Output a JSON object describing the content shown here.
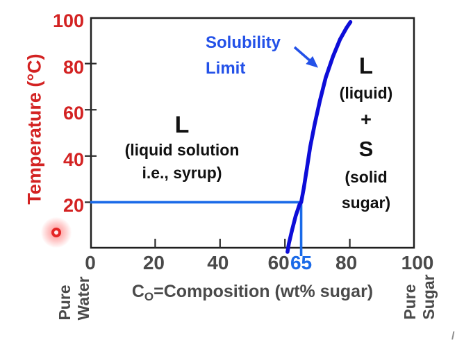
{
  "colors": {
    "curve": "#0d0dd8",
    "guide": "#1a6ae8",
    "callout": "#2351e8",
    "axis_red": "#d32222",
    "label_gray": "#4a4a4a",
    "border": "#1f1f1f"
  },
  "chart_data": {
    "type": "line",
    "title": "",
    "ylabel": "Temperature (°C)",
    "xlabel": {
      "symbol": "C",
      "subscript": "O",
      "rest": "=Composition (wt% sugar)"
    },
    "xlim": [
      0,
      100
    ],
    "ylim": [
      0,
      100
    ],
    "grid": false,
    "x_ticks": [
      {
        "value": 0,
        "label": "0",
        "color": "gray"
      },
      {
        "value": 20,
        "label": "20",
        "color": "gray",
        "dx": -2
      },
      {
        "value": 40,
        "label": "40",
        "color": "gray",
        "dx": -3
      },
      {
        "value": 60,
        "label": "60",
        "color": "gray",
        "dx": -9
      },
      {
        "value": 65,
        "label": "65",
        "color": "blue"
      },
      {
        "value": 80,
        "label": "80",
        "color": "gray",
        "dx": -5
      },
      {
        "value": 100,
        "label": "100",
        "color": "gray",
        "dx": 4
      }
    ],
    "x_tick_marks": [
      20,
      40,
      60,
      80
    ],
    "y_ticks": [
      {
        "value": 100,
        "label": "100"
      },
      {
        "value": 80,
        "label": "80"
      },
      {
        "value": 60,
        "label": "60"
      },
      {
        "value": 40,
        "label": "40"
      },
      {
        "value": 20,
        "label": "20"
      }
    ],
    "y_tick_marks": [
      20,
      40,
      60,
      80
    ],
    "series": [
      {
        "name": "Solubility Limit",
        "points": [
          [
            60.8,
            -1.5
          ],
          [
            61.2,
            2
          ],
          [
            62.2,
            8
          ],
          [
            63.3,
            14
          ],
          [
            64.5,
            19
          ],
          [
            65,
            20
          ],
          [
            65.8,
            26
          ],
          [
            66.8,
            35
          ],
          [
            67.8,
            44
          ],
          [
            69.2,
            54
          ],
          [
            70.8,
            64
          ],
          [
            72.6,
            74
          ],
          [
            74.8,
            83
          ],
          [
            77,
            90.5
          ],
          [
            79,
            95.5
          ],
          [
            80.2,
            98
          ]
        ]
      }
    ],
    "guides": {
      "temperature": 20,
      "composition": 65
    },
    "annotations": {
      "callout": {
        "line1": "Solubility",
        "line2": "Limit"
      },
      "region_left": {
        "phase": "L",
        "desc1": "(liquid solution",
        "desc2": "i.e., syrup)"
      },
      "region_right": {
        "phase1": "L",
        "desc1": "(liquid)",
        "plus": "+",
        "phase2": "S",
        "desc2": "(solid",
        "desc3": "sugar)"
      },
      "left_axis_end": {
        "line1": "Pure",
        "line2": "Water"
      },
      "right_axis_end": {
        "line1": "Pure",
        "line2": "Sugar"
      },
      "corner_mark": "/"
    }
  }
}
